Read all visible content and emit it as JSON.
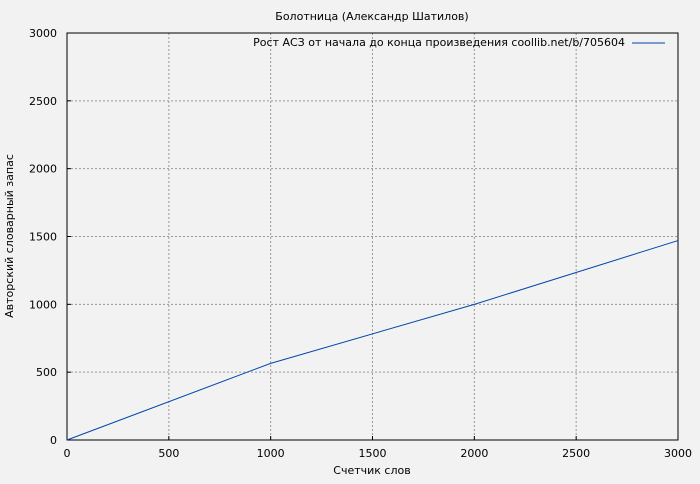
{
  "chart_data": {
    "type": "line",
    "title": "Болотница (Александр Шатилов)",
    "xlabel": "Счетчик слов",
    "ylabel": "Авторский словарный запас",
    "xlim": [
      0,
      3000
    ],
    "ylim": [
      0,
      3000
    ],
    "xticks": [
      0,
      500,
      1000,
      1500,
      2000,
      2500,
      3000
    ],
    "yticks": [
      0,
      500,
      1000,
      1500,
      2000,
      2500,
      3000
    ],
    "grid": true,
    "legend_position": "top-right",
    "series": [
      {
        "name": "Рост АСЗ от начала до конца произведения coollib.net/b/705604",
        "color": "#0047ab",
        "x": [
          0,
          1000,
          2000,
          3000
        ],
        "y": [
          0,
          565,
          1000,
          1470
        ]
      }
    ]
  }
}
